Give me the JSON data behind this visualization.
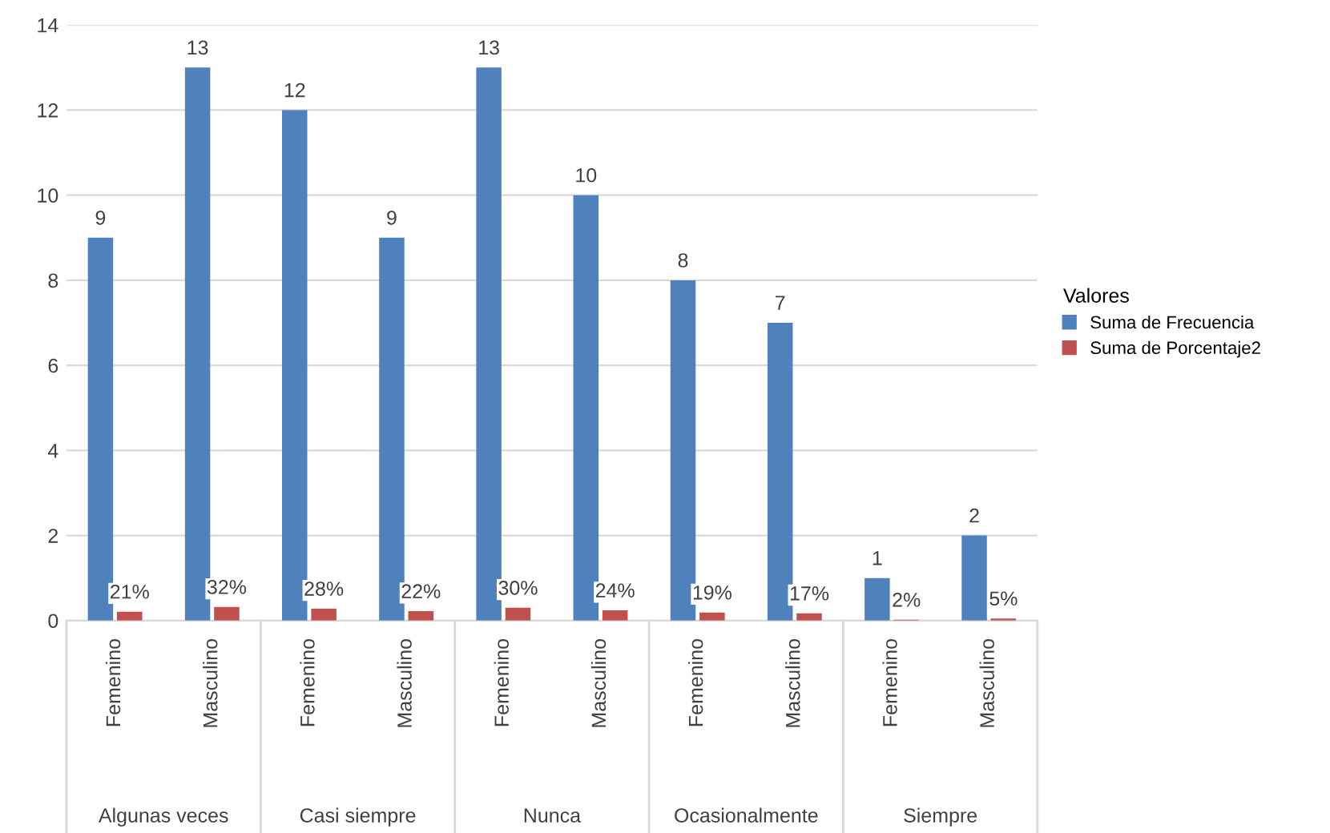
{
  "chart_data": {
    "type": "bar",
    "categories": [
      "Femenino",
      "Masculino",
      "Femenino",
      "Masculino",
      "Femenino",
      "Masculino",
      "Femenino",
      "Masculino",
      "Femenino",
      "Masculino"
    ],
    "annotations": [
      "Algunas veces",
      "Casi siempre",
      "Nunca",
      "Ocasionalmente",
      "Siempre"
    ],
    "series": [
      {
        "name": "Suma de Frecuencia",
        "color": "#4f81bd",
        "values": [
          9,
          13,
          12,
          9,
          13,
          10,
          8,
          7,
          1,
          2
        ],
        "value_labels": [
          "9",
          "13",
          "12",
          "9",
          "13",
          "10",
          "8",
          "7",
          "1",
          "2"
        ]
      },
      {
        "name": "Suma de Porcentaje2",
        "color": "#c0504d",
        "values": [
          0.21,
          0.32,
          0.28,
          0.22,
          0.3,
          0.24,
          0.19,
          0.17,
          0.02,
          0.05
        ],
        "value_labels": [
          "21%",
          "32%",
          "28%",
          "22%",
          "30%",
          "24%",
          "19%",
          "17%",
          "2%",
          "5%"
        ]
      }
    ],
    "legend_title": "Valores",
    "legend": "right",
    "ylim": [
      0,
      14
    ],
    "yticks": [
      0,
      2,
      4,
      6,
      8,
      10,
      12,
      14
    ],
    "grid": "y"
  }
}
